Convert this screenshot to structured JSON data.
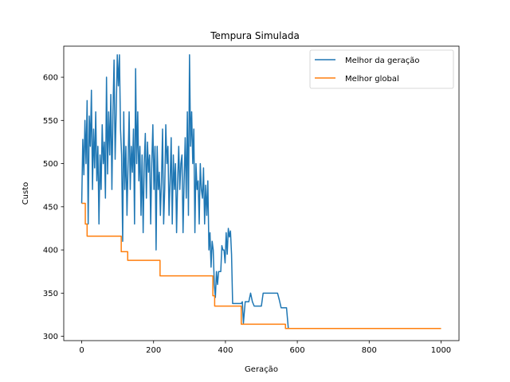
{
  "chart_data": {
    "type": "line",
    "title": "Tempura Simulada",
    "xlabel": "Geração",
    "ylabel": "Custo",
    "xlim": [
      -50,
      1050
    ],
    "ylim": [
      295,
      636
    ],
    "xticks": [
      0,
      200,
      400,
      600,
      800,
      1000
    ],
    "yticks": [
      300,
      350,
      400,
      450,
      500,
      550,
      600
    ],
    "grid": false,
    "legend_position": "top-right",
    "series": [
      {
        "name": "Melhor da geração",
        "color": "#1f77b4",
        "x": [
          0,
          3,
          6,
          9,
          12,
          15,
          18,
          21,
          24,
          27,
          30,
          33,
          36,
          39,
          42,
          45,
          48,
          51,
          54,
          57,
          60,
          63,
          66,
          69,
          72,
          75,
          78,
          81,
          84,
          87,
          90,
          93,
          96,
          99,
          102,
          105,
          108,
          111,
          114,
          117,
          120,
          123,
          126,
          129,
          132,
          135,
          138,
          141,
          144,
          147,
          150,
          153,
          156,
          159,
          162,
          165,
          168,
          171,
          174,
          177,
          180,
          183,
          186,
          189,
          192,
          195,
          198,
          201,
          204,
          207,
          210,
          213,
          216,
          219,
          222,
          225,
          228,
          231,
          234,
          237,
          240,
          243,
          246,
          249,
          252,
          255,
          258,
          261,
          264,
          267,
          270,
          273,
          276,
          279,
          282,
          285,
          288,
          291,
          294,
          297,
          300,
          303,
          306,
          309,
          312,
          315,
          318,
          321,
          324,
          327,
          330,
          333,
          336,
          339,
          342,
          345,
          348,
          351,
          354,
          357,
          360,
          363,
          366,
          369,
          372,
          375,
          378,
          381,
          384,
          387,
          390,
          393,
          396,
          399,
          402,
          405,
          408,
          411,
          414,
          417,
          420,
          423,
          426,
          429,
          432,
          435,
          438,
          441,
          444,
          447,
          450,
          455,
          460,
          465,
          470,
          475,
          480,
          485,
          490,
          495,
          500,
          505,
          510,
          515,
          520,
          525,
          530,
          535,
          540,
          545,
          550,
          555,
          560,
          565,
          570,
          575,
          600,
          650,
          700,
          750,
          800,
          850,
          900,
          950,
          1000
        ],
        "y": [
          454,
          528,
          487,
          550,
          500,
          573,
          430,
          555,
          520,
          585,
          470,
          540,
          495,
          560,
          480,
          520,
          430,
          510,
          470,
          545,
          500,
          525,
          460,
          600,
          488,
          560,
          510,
          580,
          470,
          560,
          620,
          505,
          560,
          626,
          590,
          626,
          540,
          510,
          410,
          560,
          470,
          520,
          440,
          500,
          560,
          470,
          520,
          490,
          540,
          430,
          610,
          500,
          560,
          480,
          520,
          440,
          510,
          420,
          500,
          535,
          460,
          525,
          490,
          510,
          430,
          500,
          545,
          470,
          520,
          400,
          520,
          470,
          490,
          440,
          480,
          540,
          430,
          470,
          545,
          500,
          520,
          440,
          480,
          530,
          430,
          510,
          470,
          500,
          420,
          480,
          520,
          470,
          500,
          510,
          420,
          480,
          530,
          460,
          560,
          440,
          626,
          520,
          560,
          500,
          540,
          420,
          500,
          470,
          480,
          430,
          500,
          470,
          460,
          495,
          430,
          475,
          440,
          480,
          400,
          420,
          380,
          410,
          400,
          360,
          345,
          375,
          360,
          375,
          375,
          375,
          405,
          400,
          400,
          385,
          420,
          395,
          425,
          415,
          422,
          395,
          338,
          338,
          338,
          338,
          338,
          338,
          338,
          338,
          338,
          340,
          315,
          340,
          340,
          340,
          350,
          340,
          335,
          335,
          335,
          335,
          335,
          350,
          350,
          350,
          350,
          350,
          350,
          350,
          350,
          350,
          342,
          333,
          333,
          333,
          333,
          309,
          309,
          309,
          309,
          309,
          309,
          309,
          309,
          309,
          309
        ]
      },
      {
        "name": "Melhor global",
        "color": "#ff7f0e",
        "x": [
          0,
          10,
          10,
          15,
          15,
          110,
          110,
          128,
          128,
          218,
          218,
          365,
          365,
          370,
          370,
          444,
          444,
          567,
          567,
          1000
        ],
        "y": [
          454,
          454,
          430,
          430,
          416,
          416,
          398,
          398,
          388,
          388,
          370,
          370,
          347,
          347,
          335,
          335,
          314,
          314,
          309,
          309
        ]
      }
    ]
  }
}
